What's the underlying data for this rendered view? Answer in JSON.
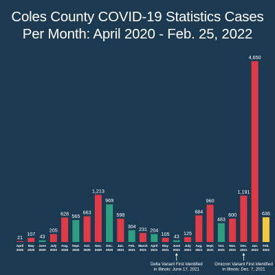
{
  "title": {
    "line1": "Coles County COVID-19 Statistics Cases",
    "line2": "Per Month: April 2020 - Feb. 25, 2022"
  },
  "colors": {
    "background": "#1b3a52",
    "red": "#e03a47",
    "green": "#2f9f82",
    "yellow": "#f5c842",
    "text": "#ffffff"
  },
  "chart_data": {
    "type": "bar",
    "title": "Coles County COVID-19 Statistics Cases Per Month: April 2020 - Feb. 25, 2022",
    "xlabel": "",
    "ylabel": "",
    "grid": false,
    "legend": "none",
    "categories": [
      [
        "April",
        "2020"
      ],
      [
        "May",
        "2020"
      ],
      [
        "June",
        "2020"
      ],
      [
        "July",
        "2020"
      ],
      [
        "Aug.",
        "2020"
      ],
      [
        "Sept.",
        "2020"
      ],
      [
        "Oct.",
        "2020"
      ],
      [
        "Nov.",
        "2020"
      ],
      [
        "Dec.",
        "2020"
      ],
      [
        "Jan.",
        "2021"
      ],
      [
        "Feb.",
        "2021"
      ],
      [
        "March",
        "2021"
      ],
      [
        "April",
        "2021"
      ],
      [
        "May",
        "2021"
      ],
      [
        "June",
        "2021"
      ],
      [
        "July",
        "2021"
      ],
      [
        "Aug.",
        "2021"
      ],
      [
        "Sept.",
        "2021"
      ],
      [
        "Oct.",
        "2021"
      ],
      [
        "Nov.",
        "2021"
      ],
      [
        "Dec.",
        "2021"
      ],
      [
        "Jan.",
        "2022"
      ],
      [
        "Feb.",
        "2022"
      ]
    ],
    "values": [
      21,
      107,
      43,
      205,
      628,
      565,
      663,
      1213,
      969,
      598,
      304,
      231,
      204,
      105,
      43,
      125,
      684,
      960,
      483,
      600,
      1191,
      4650,
      636
    ],
    "value_labels": [
      "21",
      "107",
      "43",
      "205",
      "628",
      "565",
      "663",
      "1,213",
      "969",
      "598",
      "304",
      "231",
      "204",
      "105",
      "43",
      "125",
      "684",
      "960",
      "483",
      "600",
      "1,191",
      "4,650",
      "636"
    ],
    "bar_colors": [
      "red",
      "red",
      "green",
      "red",
      "red",
      "green",
      "red",
      "red",
      "green",
      "red",
      "green",
      "red",
      "green",
      "red",
      "green",
      "red",
      "red",
      "red",
      "green",
      "red",
      "red",
      "red",
      "yellow"
    ],
    "annotations": [
      {
        "month_index": 14,
        "lines": [
          "Delta Variant First Identified",
          "in Illinois: June 17, 2021"
        ]
      },
      {
        "month_index": 20,
        "lines": [
          "Omicron Variant First Identified",
          "in Illinois: Dec. 7, 2021"
        ]
      }
    ]
  }
}
